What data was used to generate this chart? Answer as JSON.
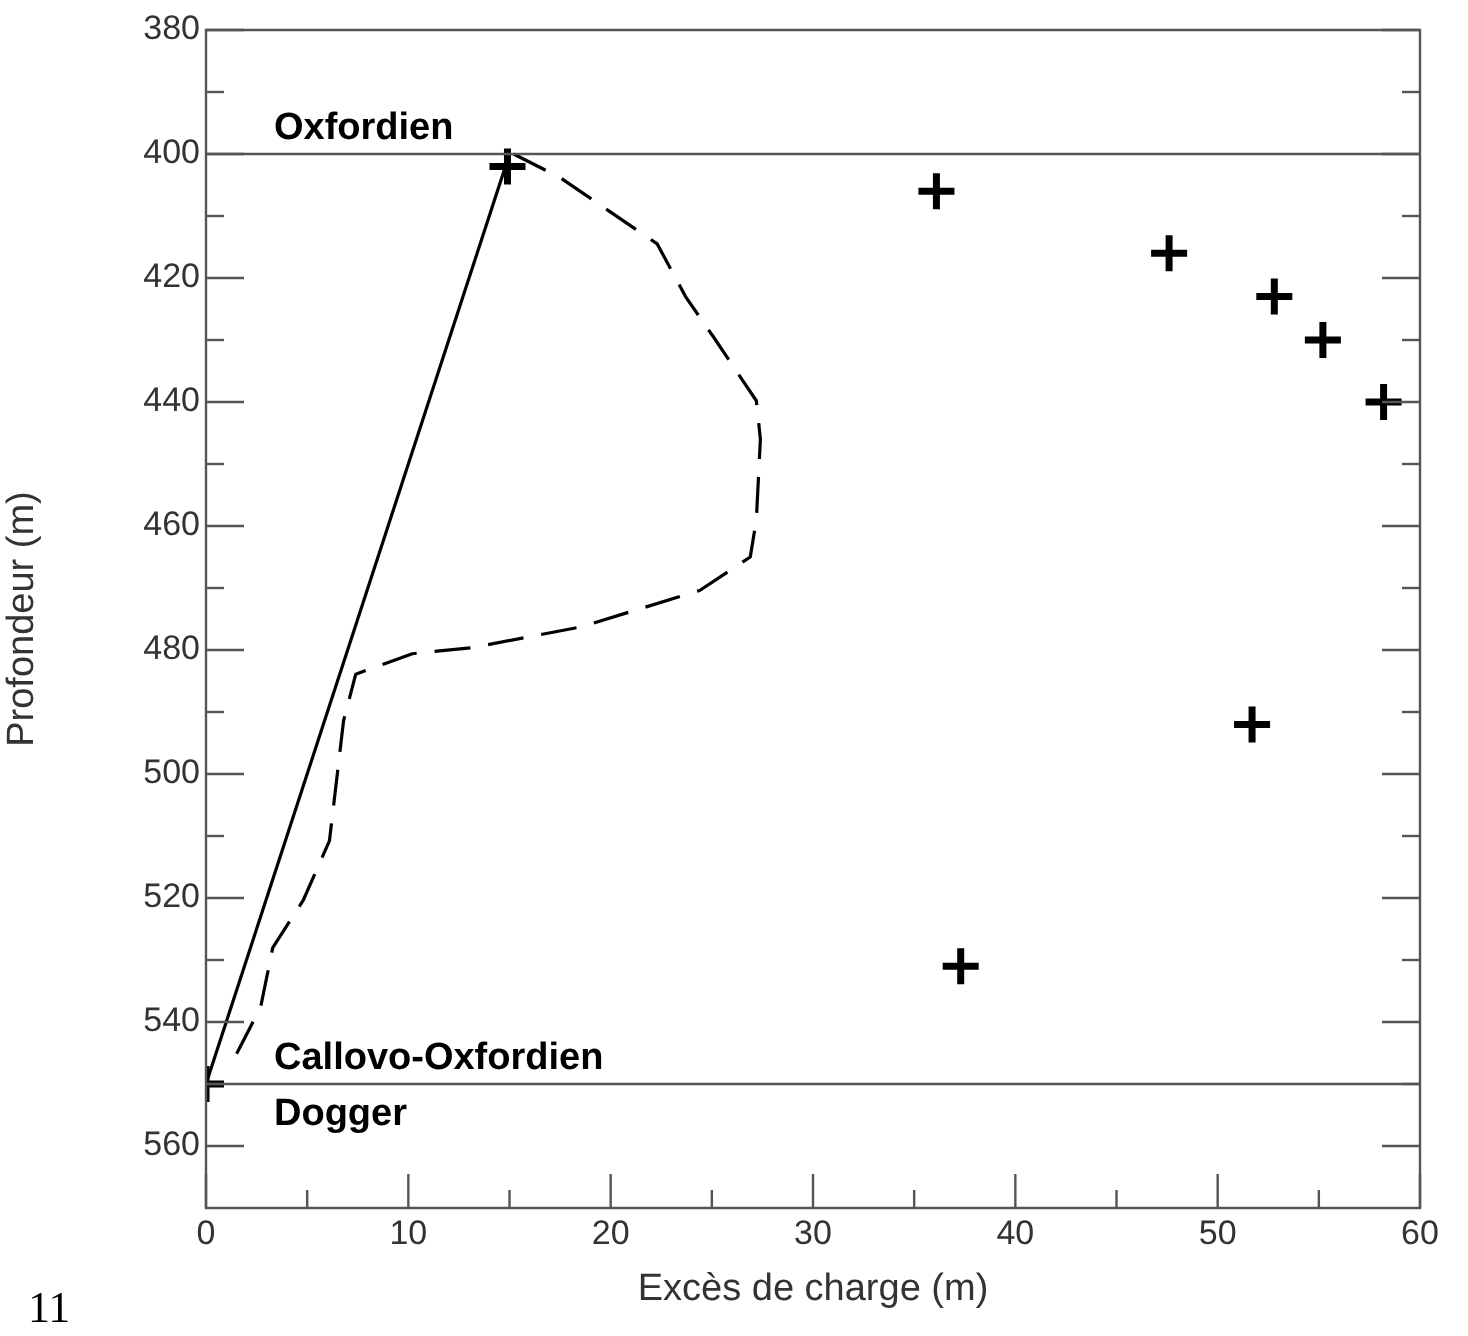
{
  "chart_data": {
    "type": "scatter",
    "xlabel": "Excès de charge (m)",
    "ylabel": "Profondeur (m)",
    "xlim": [
      0,
      60
    ],
    "ylim": [
      570,
      380
    ],
    "xticks": [
      0,
      {
        "value": 5,
        "label": null
      },
      10,
      {
        "value": 15,
        "label": null
      },
      20,
      {
        "value": 25,
        "label": null
      },
      30,
      {
        "value": 35,
        "label": null
      },
      40,
      {
        "value": 45,
        "label": null
      },
      50,
      {
        "value": 55,
        "label": null
      },
      60
    ],
    "yticks": [
      380,
      {
        "value": 390,
        "label": null
      },
      400,
      {
        "value": 410,
        "label": null
      },
      420,
      {
        "value": 430,
        "label": null
      },
      440,
      {
        "value": 450,
        "label": null
      },
      460,
      {
        "value": 470,
        "label": null
      },
      480,
      {
        "value": 490,
        "label": null
      },
      500,
      {
        "value": 510,
        "label": null
      },
      520,
      {
        "value": 530,
        "label": null
      },
      540,
      {
        "value": 550,
        "label": null
      },
      560
    ],
    "grid": false,
    "legend": false,
    "series": [
      {
        "color": "#000000",
        "marker": "cross",
        "x": [
          0,
          14.9,
          36.1,
          47.6,
          52.8,
          55.2,
          58.2,
          51.7,
          37.3
        ],
        "values": [
          550,
          402,
          406,
          416,
          423,
          430,
          440,
          492,
          531
        ]
      },
      {
        "type": "line",
        "color": "#000000",
        "marker": "none",
        "line_style": "solid",
        "x": [
          0,
          15
        ],
        "values": [
          550,
          400
        ]
      },
      {
        "type": "line",
        "color": "#000000",
        "marker": "none",
        "line_style": "dashed",
        "x": [
          15.2,
          17.5,
          22.3,
          23.7,
          25.1,
          27.2,
          27.4,
          27.2,
          26.9,
          24.4,
          18.5,
          13.2,
          10.2,
          7.4,
          6.8,
          6.1,
          4.8,
          3.3,
          2.7,
          1.5
        ],
        "values": [
          400,
          403.8,
          414.5,
          423,
          429.6,
          439.8,
          446,
          459,
          465,
          470.4,
          476.3,
          479.6,
          480.6,
          483.9,
          491.4,
          510.8,
          520.4,
          528,
          537.6,
          545.2
        ]
      }
    ],
    "ref_lines": [
      {
        "axis": "y",
        "value": 400,
        "color": "#555555",
        "label": "Oxfordien"
      },
      {
        "axis": "y",
        "value": 550,
        "color": "#555555",
        "label": "Callovo-Oxfordien"
      }
    ],
    "annotations": [
      "Dogger",
      "11"
    ]
  }
}
